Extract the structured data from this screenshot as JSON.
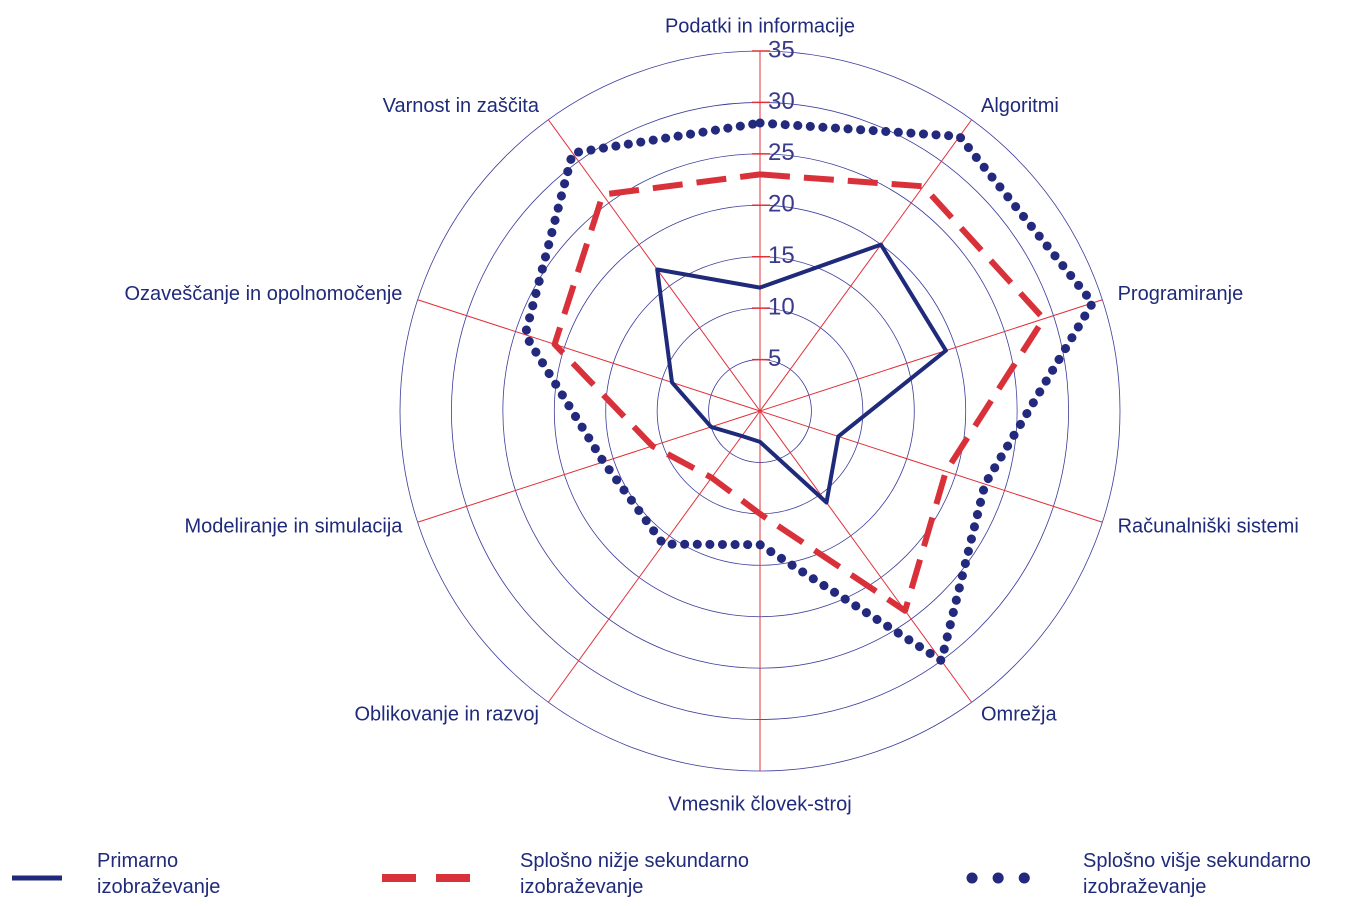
{
  "chart_data": {
    "type": "radar",
    "categories": [
      "Podatki in informacije",
      "Algoritmi",
      "Programiranje",
      "Računalniški sistemi",
      "Omrežja",
      "Vmesnik človek-stroj",
      "Oblikovanje in razvoj",
      "Modeliranje in simulacija",
      "Ozaveščanje in opolnomočenje",
      "Varnost in zaščita"
    ],
    "series": [
      {
        "name": "Primarno izobraževanje",
        "color": "#1f2a7a",
        "style": "solid",
        "values": [
          12,
          20,
          19,
          8,
          11,
          3,
          3,
          5,
          9,
          17
        ]
      },
      {
        "name": "Splošno nižje sekundarno izobraževanje",
        "color": "#d9313a",
        "style": "dashed",
        "values": [
          23,
          27,
          29,
          19,
          24,
          10,
          8,
          11,
          21,
          26
        ]
      },
      {
        "name": "Splošno višje sekundarno izobraževanje",
        "color": "#232a7e",
        "style": "dotted",
        "values": [
          28,
          33,
          34,
          23,
          30,
          13,
          16,
          16,
          24,
          31
        ]
      }
    ],
    "rlim": [
      0,
      35
    ],
    "rticks": [
      5,
      10,
      15,
      20,
      25,
      30,
      35
    ],
    "grid": true,
    "legend": "bottom"
  }
}
